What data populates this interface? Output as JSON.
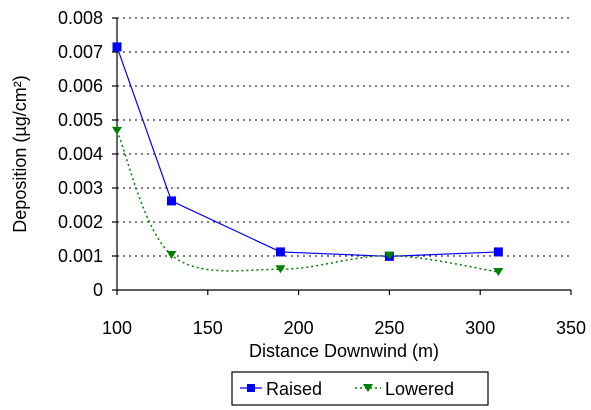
{
  "chart_data": {
    "type": "line",
    "title": "",
    "xlabel": "Distance Downwind (m)",
    "ylabel": "Deposition (µg/cm²)",
    "xlim": [
      100,
      350
    ],
    "ylim": [
      0,
      0.008
    ],
    "xticks": [
      "100",
      "150",
      "200",
      "250",
      "300",
      "350"
    ],
    "yticks": [
      "0",
      "0.001",
      "0.002",
      "0.003",
      "0.004",
      "0.005",
      "0.006",
      "0.007",
      "0.008"
    ],
    "grid": "horizontal dotted",
    "legend_position": "bottom",
    "series": [
      {
        "name": "Raised",
        "color": "#0000ff",
        "line_style": "solid",
        "marker": "square",
        "smooth": false,
        "x": [
          100,
          130,
          190,
          250,
          310
        ],
        "y": [
          0.00715,
          0.00262,
          0.00112,
          0.00099,
          0.00112
        ]
      },
      {
        "name": "Lowered",
        "color": "#008000",
        "line_style": "dotted",
        "marker": "triangle-down",
        "smooth": true,
        "x": [
          100,
          130,
          190,
          250,
          310
        ],
        "y": [
          0.00468,
          0.00103,
          0.00061,
          0.00101,
          0.00053
        ]
      }
    ]
  }
}
